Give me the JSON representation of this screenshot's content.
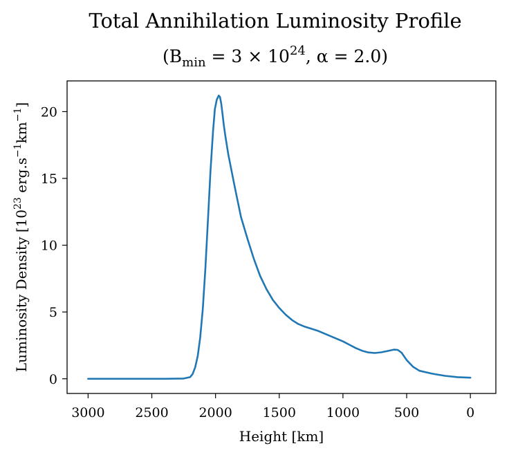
{
  "chart_data": {
    "type": "line",
    "title": "Total Annihilation Luminosity Profile",
    "subtitle": {
      "open": "(B",
      "sub": "min",
      "mid": " = 3 × 10",
      "sup": "24",
      "tail": ",  α = 2.0)"
    },
    "xlabel": "Height [km]",
    "ylabel": {
      "pre": "Luminosity Density [10",
      "sup1": "23",
      "mid": " erg.s",
      "sup2": "−1",
      "mid2": "km",
      "sup3": "−1",
      "post": "]"
    },
    "xlim": [
      3165,
      -200
    ],
    "ylim": [
      -1.1,
      22.3
    ],
    "xticks": [
      3000,
      2500,
      2000,
      1500,
      1000,
      500,
      0
    ],
    "yticks": [
      0,
      5,
      10,
      15,
      20
    ],
    "color": "#1f77b4",
    "series": [
      {
        "name": "luminosity",
        "x": [
          3000,
          2700,
          2400,
          2250,
          2200,
          2180,
          2160,
          2140,
          2120,
          2100,
          2080,
          2060,
          2040,
          2020,
          2005,
          1990,
          1975,
          1965,
          1955,
          1945,
          1935,
          1925,
          1900,
          1850,
          1800,
          1750,
          1700,
          1650,
          1600,
          1550,
          1500,
          1450,
          1400,
          1350,
          1300,
          1250,
          1200,
          1150,
          1100,
          1050,
          1000,
          950,
          900,
          850,
          800,
          750,
          700,
          650,
          600,
          570,
          540,
          500,
          450,
          400,
          300,
          200,
          100,
          0
        ],
        "y": [
          0,
          0,
          0,
          0.02,
          0.12,
          0.35,
          0.85,
          1.7,
          3.1,
          5.2,
          8.2,
          11.8,
          15.5,
          18.5,
          20.2,
          20.9,
          21.2,
          21.1,
          20.6,
          19.8,
          19.0,
          18.3,
          16.8,
          14.4,
          12.1,
          10.5,
          9.0,
          7.7,
          6.7,
          5.9,
          5.3,
          4.8,
          4.4,
          4.1,
          3.9,
          3.75,
          3.6,
          3.4,
          3.2,
          3.0,
          2.8,
          2.55,
          2.3,
          2.1,
          1.97,
          1.93,
          1.98,
          2.08,
          2.18,
          2.16,
          1.95,
          1.4,
          0.9,
          0.6,
          0.38,
          0.22,
          0.12,
          0.08
        ]
      }
    ]
  }
}
